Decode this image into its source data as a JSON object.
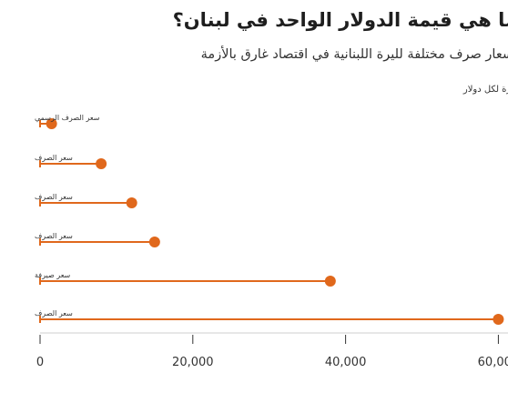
{
  "chart_data": {
    "type": "lollipop",
    "title": "ما هي قيمة الدولار الواحد في لبنان؟",
    "subtitle": "أسعار صرف مختلفة لليرة اللبنانية في اقتصاد غارق بالأزمة",
    "ylabel": "ليرة لكل دولار",
    "categories": [
      "سعر الصرف الرسمي",
      "سعر الصرف",
      "سعر الصرف",
      "سعر الصرف",
      "سعر صيرفة",
      "سعر الصرف"
    ],
    "values": [
      1507,
      8000,
      12000,
      15000,
      38000,
      60000
    ],
    "xticks": [
      0,
      20000,
      40000,
      60000
    ],
    "xtick_labels": [
      "0",
      "20,000",
      "40,000",
      "60,000"
    ],
    "xlim": [
      0,
      61500
    ],
    "grid": false,
    "colors": {
      "accent": "#e0681c",
      "axis": "#333333"
    }
  }
}
